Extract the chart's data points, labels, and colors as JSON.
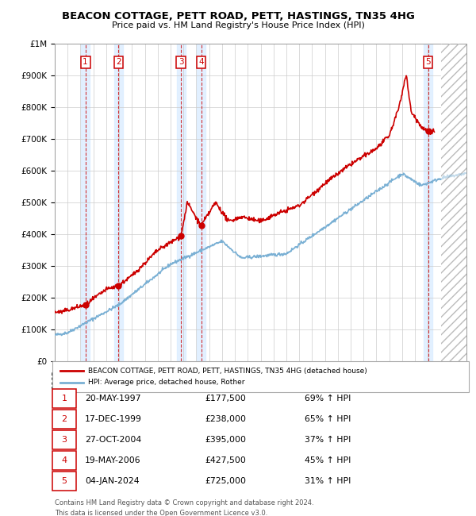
{
  "title": "BEACON COTTAGE, PETT ROAD, PETT, HASTINGS, TN35 4HG",
  "subtitle": "Price paid vs. HM Land Registry's House Price Index (HPI)",
  "xlim_start": 1995.0,
  "xlim_end": 2027.0,
  "ylim_min": 0,
  "ylim_max": 1000000,
  "sale_color": "#cc0000",
  "hpi_color": "#7ab0d4",
  "background_color": "#ffffff",
  "grid_color": "#cccccc",
  "transactions": [
    {
      "num": 1,
      "date_label": "20-MAY-1997",
      "x": 1997.38,
      "price": 177500,
      "pct": "69%",
      "dir": "↑"
    },
    {
      "num": 2,
      "date_label": "17-DEC-1999",
      "x": 1999.96,
      "price": 238000,
      "pct": "65%",
      "dir": "↑"
    },
    {
      "num": 3,
      "date_label": "27-OCT-2004",
      "x": 2004.82,
      "price": 395000,
      "pct": "37%",
      "dir": "↑"
    },
    {
      "num": 4,
      "date_label": "19-MAY-2006",
      "x": 2006.38,
      "price": 427500,
      "pct": "45%",
      "dir": "↑"
    },
    {
      "num": 5,
      "date_label": "04-JAN-2024",
      "x": 2024.01,
      "price": 725000,
      "pct": "31%",
      "dir": "↑"
    }
  ],
  "legend_label_red": "BEACON COTTAGE, PETT ROAD, PETT, HASTINGS, TN35 4HG (detached house)",
  "legend_label_blue": "HPI: Average price, detached house, Rother",
  "footnote1": "Contains HM Land Registry data © Crown copyright and database right 2024.",
  "footnote2": "This data is licensed under the Open Government Licence v3.0.",
  "shaded_region_color": "#ddeeff",
  "hatch_start": 2025.0
}
